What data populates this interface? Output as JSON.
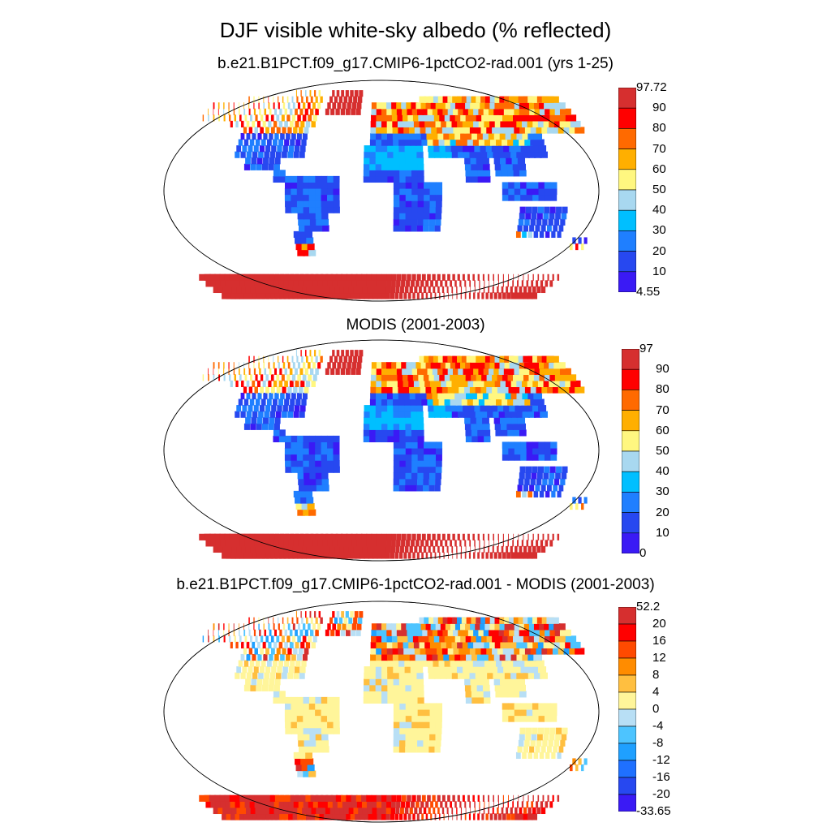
{
  "title": "DJF visible white-sky albedo (% reflected)",
  "panels": [
    {
      "title": "b.e21.B1PCT.f09_g17.CMIP6-1pctCO2-rad.001 (yrs 1-25)",
      "colorbar": {
        "labels": [
          "97.72",
          "90",
          "80",
          "70",
          "60",
          "50",
          "40",
          "30",
          "20",
          "10",
          "4.55"
        ],
        "colors": [
          "#d62f2f",
          "#ff0000",
          "#ff6a00",
          "#ffaf00",
          "#fff780",
          "#a8d8f0",
          "#00bfff",
          "#1f7fff",
          "#2748f0",
          "#3a1af5"
        ]
      }
    },
    {
      "title": "MODIS (2001-2003)",
      "colorbar": {
        "labels": [
          "97",
          "90",
          "80",
          "70",
          "60",
          "50",
          "40",
          "30",
          "20",
          "10",
          "0"
        ],
        "colors": [
          "#d62f2f",
          "#ff0000",
          "#ff6a00",
          "#ffaf00",
          "#fff780",
          "#a8d8f0",
          "#00bfff",
          "#1f7fff",
          "#2748f0",
          "#3a1af5"
        ]
      }
    },
    {
      "title": "b.e21.B1PCT.f09_g17.CMIP6-1pctCO2-rad.001 - MODIS (2001-2003)",
      "colorbar": {
        "labels": [
          "52.2",
          "20",
          "16",
          "12",
          "8",
          "4",
          "0",
          "-4",
          "-8",
          "-12",
          "-16",
          "-20",
          "-33.65"
        ],
        "colors": [
          "#d62f2f",
          "#ff0000",
          "#ff4a00",
          "#ff8c00",
          "#ffbf40",
          "#fff59a",
          "#b8dff5",
          "#4dc4ff",
          "#1fa0ff",
          "#1f70ff",
          "#2748f0",
          "#3a1af5"
        ]
      }
    }
  ]
}
